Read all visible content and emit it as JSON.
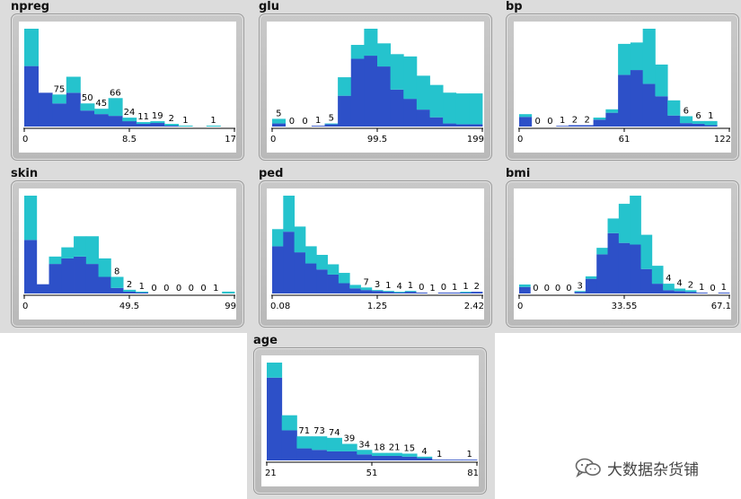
{
  "colors": {
    "lower": "#2d50c8",
    "upper": "#25c3cd",
    "band": "#dcdcdc"
  },
  "watermark": {
    "icon": "wechat-icon",
    "text": "大数据杂货铺"
  },
  "chart_data": [
    {
      "type": "bar",
      "title": "npreg",
      "ticks": [
        "0",
        "8.5",
        "17"
      ],
      "series": [
        {
          "values": [
            68,
            38,
            26,
            38,
            18,
            14,
            12,
            6,
            3,
            4,
            1,
            0,
            0,
            0,
            0
          ]
        },
        {
          "values": [
            42,
            0,
            10,
            18,
            8,
            6,
            20,
            4,
            2,
            2,
            2,
            1,
            0,
            1,
            0
          ]
        }
      ],
      "labels": [
        "",
        "",
        "75",
        "",
        "50",
        "45",
        "66",
        "24",
        "11",
        "19",
        "2",
        "1",
        "",
        "1",
        ""
      ]
    },
    {
      "type": "bar",
      "title": "glu",
      "ticks": [
        "0",
        "99.5",
        "199"
      ],
      "series": [
        {
          "values": [
            4,
            0,
            0,
            1,
            3,
            40,
            88,
            92,
            78,
            48,
            36,
            22,
            12,
            4,
            3,
            3
          ]
        },
        {
          "values": [
            6,
            0,
            0,
            0,
            1,
            24,
            18,
            35,
            30,
            46,
            55,
            44,
            42,
            40,
            40,
            40
          ]
        }
      ],
      "labels": [
        "5",
        "0",
        "0",
        "1",
        "5",
        "",
        "",
        "",
        "",
        "",
        "",
        "",
        "",
        "",
        "",
        ""
      ]
    },
    {
      "type": "bar",
      "title": "bp",
      "ticks": [
        "0",
        "61",
        "122"
      ],
      "series": [
        {
          "values": [
            14,
            0,
            0,
            1,
            2,
            2,
            10,
            20,
            75,
            82,
            62,
            44,
            16,
            5,
            4,
            2,
            0
          ]
        },
        {
          "values": [
            4,
            0,
            0,
            0,
            0,
            0,
            3,
            5,
            45,
            40,
            80,
            46,
            22,
            10,
            4,
            6,
            0
          ]
        }
      ],
      "labels": [
        "",
        "0",
        "0",
        "1",
        "2",
        "2",
        "",
        "",
        "",
        "",
        "",
        "",
        "",
        "6",
        "6",
        "1",
        ""
      ]
    },
    {
      "type": "bar",
      "title": "skin",
      "ticks": [
        "0",
        "49.5",
        "99"
      ],
      "series": [
        {
          "values": [
            58,
            10,
            32,
            38,
            40,
            32,
            18,
            6,
            2,
            1,
            0,
            0,
            0,
            0,
            0,
            0,
            0
          ]
        },
        {
          "values": [
            48,
            0,
            8,
            12,
            22,
            30,
            20,
            12,
            2,
            1,
            0,
            0,
            0,
            0,
            0,
            0,
            2
          ]
        }
      ],
      "labels": [
        "",
        "",
        "",
        "",
        "",
        "",
        "",
        "8",
        "2",
        "1",
        "0",
        "0",
        "0",
        "0",
        "0",
        "1",
        ""
      ]
    },
    {
      "type": "bar",
      "title": "ped",
      "ticks": [
        "0.08",
        "1.25",
        "2.42"
      ],
      "series": [
        {
          "values": [
            55,
            72,
            48,
            35,
            28,
            22,
            12,
            6,
            4,
            3,
            2,
            1,
            2,
            1,
            0,
            1,
            1,
            1,
            2
          ]
        },
        {
          "values": [
            20,
            42,
            30,
            20,
            17,
            12,
            12,
            4,
            3,
            1,
            1,
            1,
            1,
            0,
            0,
            0,
            0,
            1,
            0
          ]
        }
      ],
      "labels": [
        "",
        "",
        "",
        "",
        "",
        "",
        "",
        "",
        "7",
        "3",
        "1",
        "4",
        "1",
        "0",
        "1",
        "0",
        "1",
        "1",
        "2"
      ]
    },
    {
      "type": "bar",
      "title": "bmi",
      "ticks": [
        "0",
        "33.55",
        "67.1"
      ],
      "series": [
        {
          "values": [
            8,
            0,
            0,
            0,
            0,
            2,
            18,
            48,
            74,
            62,
            60,
            30,
            12,
            4,
            3,
            2,
            1,
            0,
            1
          ]
        },
        {
          "values": [
            3,
            0,
            0,
            0,
            0,
            1,
            3,
            8,
            18,
            48,
            60,
            42,
            22,
            8,
            3,
            2,
            0,
            0,
            0
          ]
        }
      ],
      "labels": [
        "",
        "0",
        "0",
        "0",
        "0",
        "3",
        "",
        "",
        "",
        "",
        "",
        "",
        "",
        "4",
        "4",
        "2",
        "1",
        "0",
        "1"
      ]
    },
    {
      "type": "bar",
      "title": "age",
      "ticks": [
        "21",
        "51",
        "81"
      ],
      "series": [
        {
          "values": [
            110,
            40,
            16,
            14,
            12,
            12,
            8,
            6,
            6,
            5,
            3,
            1,
            1,
            1
          ]
        },
        {
          "values": [
            20,
            20,
            16,
            18,
            18,
            10,
            6,
            4,
            4,
            4,
            2,
            0,
            0,
            0
          ]
        }
      ],
      "labels": [
        "",
        "",
        "71",
        "73",
        "74",
        "39",
        "34",
        "18",
        "21",
        "15",
        "4",
        "1",
        "",
        "1"
      ]
    }
  ]
}
